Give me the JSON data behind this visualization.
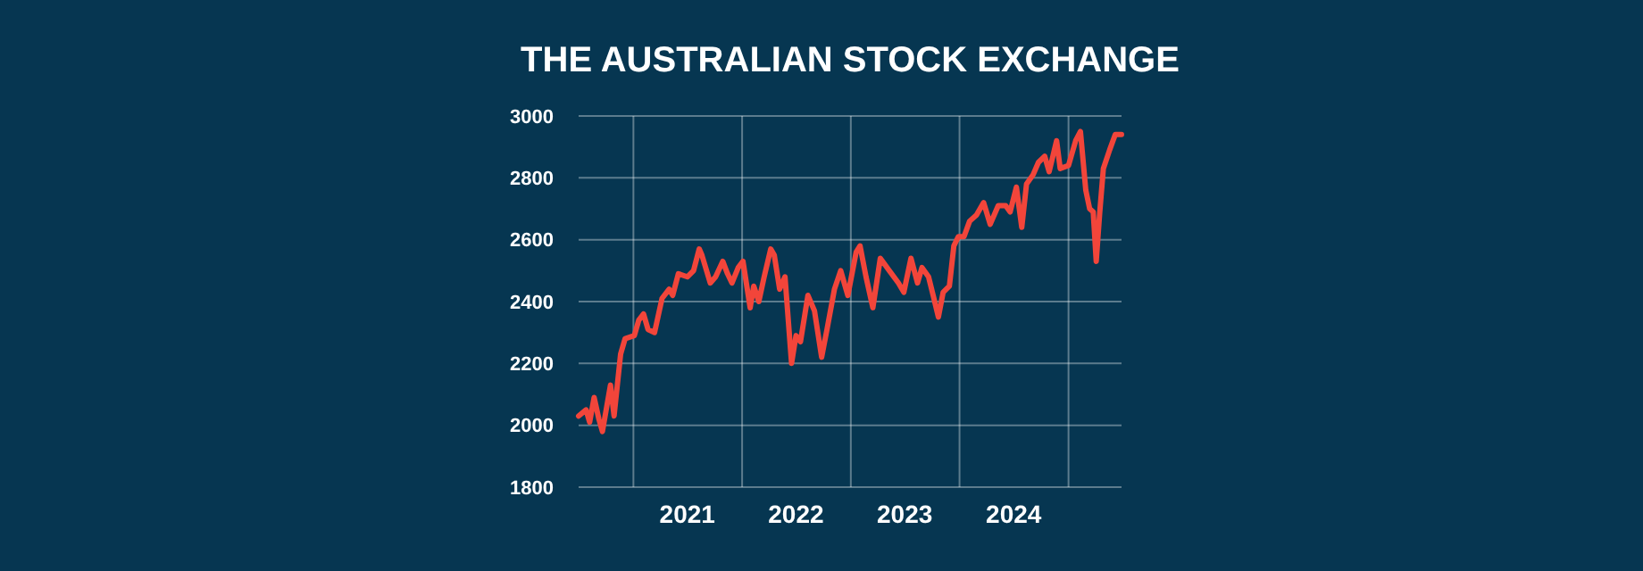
{
  "chart_data": {
    "type": "line",
    "title": "THE AUSTRALIAN STOCK EXCHANGE",
    "x": [
      "2020-07-01",
      "2020-07-26",
      "2020-08-07",
      "2020-08-22",
      "2020-09-07",
      "2020-09-19",
      "2020-10-16",
      "2020-10-28",
      "2020-11-19",
      "2020-12-04",
      "2021-01-04",
      "2021-01-19",
      "2021-02-04",
      "2021-02-19",
      "2021-03-13",
      "2021-04-07",
      "2021-05-01",
      "2021-05-13",
      "2021-06-01",
      "2021-07-01",
      "2021-07-22",
      "2021-08-10",
      "2021-08-19",
      "2021-09-16",
      "2021-10-04",
      "2021-10-28",
      "2021-11-13",
      "2021-11-28",
      "2021-12-19",
      "2022-01-04",
      "2022-01-28",
      "2022-02-09",
      "2022-02-26",
      "2022-03-16",
      "2022-04-07",
      "2022-04-19",
      "2022-05-07",
      "2022-05-25",
      "2022-06-16",
      "2022-07-01",
      "2022-07-16",
      "2022-08-10",
      "2022-09-01",
      "2022-09-25",
      "2022-10-13",
      "2022-11-07",
      "2022-11-28",
      "2022-12-22",
      "2023-01-19",
      "2023-02-01",
      "2023-02-21",
      "2023-03-16",
      "2023-04-10",
      "2023-05-10",
      "2023-06-10",
      "2023-06-28",
      "2023-07-22",
      "2023-08-13",
      "2023-08-28",
      "2023-09-19",
      "2023-10-07",
      "2023-10-22",
      "2023-11-07",
      "2023-11-28",
      "2023-12-13",
      "2023-12-28",
      "2024-01-16",
      "2024-02-04",
      "2024-02-27",
      "2024-03-22",
      "2024-04-13",
      "2024-05-10",
      "2024-06-04",
      "2024-06-19",
      "2024-07-10",
      "2024-07-28",
      "2024-08-13",
      "2024-09-04",
      "2024-09-22",
      "2024-10-13",
      "2024-10-28",
      "2024-11-22",
      "2024-12-04",
      "2025-01-01",
      "2025-01-25",
      "2025-02-10",
      "2025-02-28",
      "2025-03-13",
      "2025-03-25",
      "2025-04-04",
      "2025-04-16",
      "2025-04-28",
      "2025-05-19",
      "2025-06-07",
      "2025-06-28"
    ],
    "series": [
      {
        "color": "#f2453a",
        "values": [
          2030,
          2050,
          2010,
          2090,
          2020,
          1980,
          2130,
          2030,
          2230,
          2280,
          2290,
          2340,
          2360,
          2310,
          2300,
          2410,
          2440,
          2420,
          2490,
          2480,
          2500,
          2570,
          2550,
          2460,
          2480,
          2530,
          2490,
          2460,
          2510,
          2530,
          2380,
          2450,
          2400,
          2480,
          2570,
          2550,
          2440,
          2480,
          2200,
          2290,
          2270,
          2420,
          2370,
          2220,
          2310,
          2440,
          2500,
          2420,
          2560,
          2580,
          2480,
          2380,
          2540,
          2500,
          2460,
          2430,
          2540,
          2460,
          2510,
          2480,
          2410,
          2350,
          2430,
          2450,
          2580,
          2610,
          2610,
          2660,
          2680,
          2720,
          2650,
          2710,
          2710,
          2690,
          2770,
          2640,
          2780,
          2810,
          2850,
          2870,
          2820,
          2920,
          2830,
          2840,
          2920,
          2950,
          2760,
          2700,
          2690,
          2530,
          2690,
          2830,
          2890,
          2940,
          2940
        ]
      }
    ],
    "xlim": [
      "2020-07-01",
      "2025-06-28"
    ],
    "xticks": [
      {
        "value": "2021-01-01",
        "label": null
      },
      {
        "value": "2021-07-01",
        "label": "2021"
      },
      {
        "value": "2022-01-01",
        "label": null
      },
      {
        "value": "2022-07-01",
        "label": "2022"
      },
      {
        "value": "2023-01-01",
        "label": null
      },
      {
        "value": "2023-07-01",
        "label": "2023"
      },
      {
        "value": "2024-01-01",
        "label": null
      },
      {
        "value": "2024-07-01",
        "label": "2024"
      },
      {
        "value": "2025-01-01",
        "label": null
      }
    ],
    "ylim": [
      1800,
      3000
    ],
    "yticks": [
      1800,
      2000,
      2200,
      2400,
      2600,
      2800,
      3000
    ],
    "grid": true
  }
}
